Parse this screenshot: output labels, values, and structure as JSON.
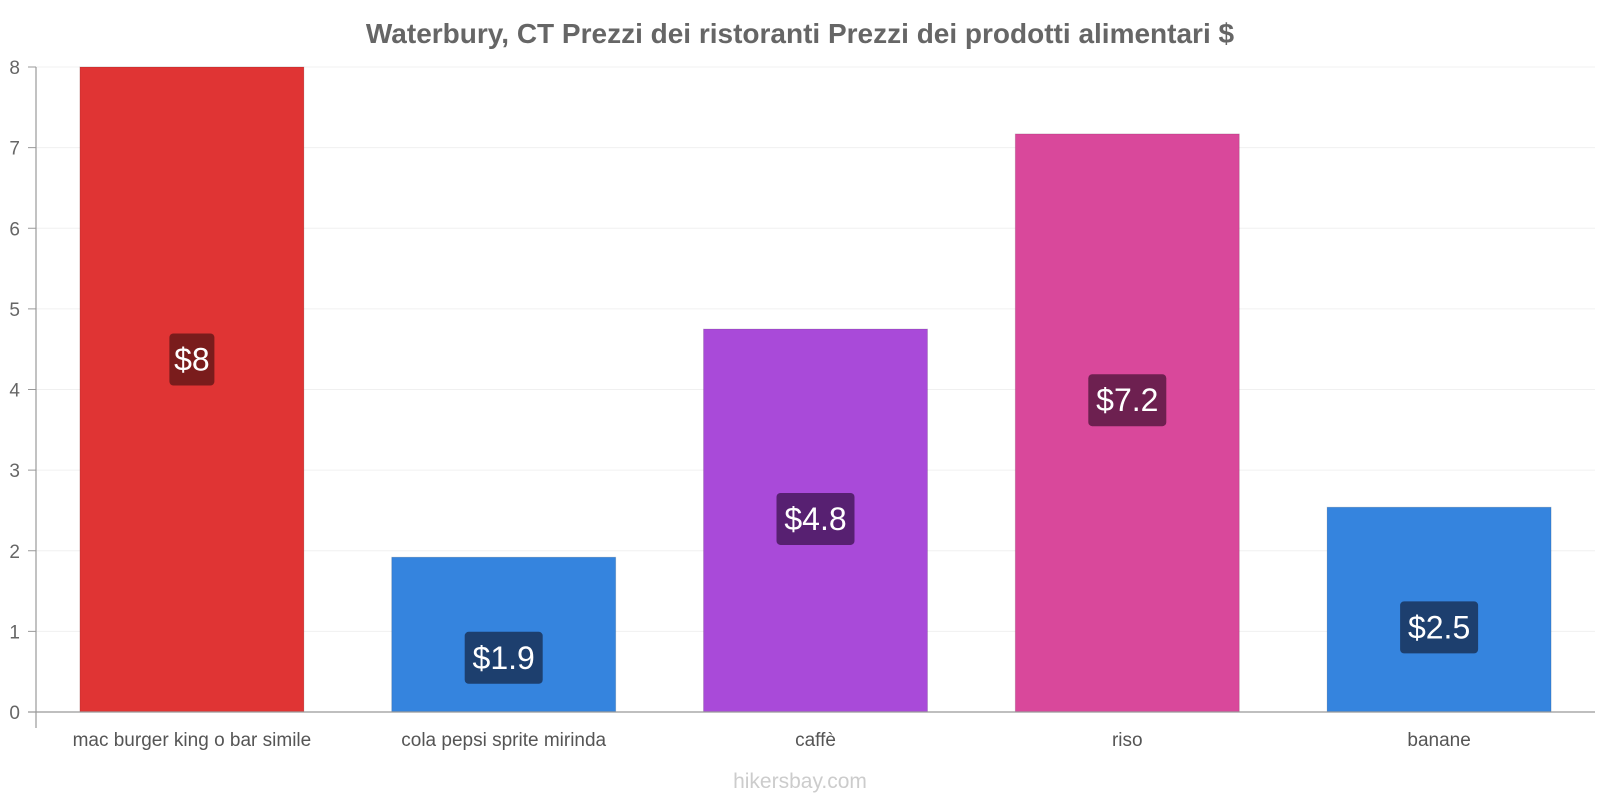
{
  "chart_data": {
    "type": "bar",
    "title": "Waterbury, CT Prezzi dei ristoranti Prezzi dei prodotti alimentari $",
    "categories": [
      "mac burger king o bar simile",
      "cola pepsi sprite mirinda",
      "caffè",
      "riso",
      "banane"
    ],
    "values": [
      8.0,
      1.92,
      4.75,
      7.17,
      2.54
    ],
    "value_labels": [
      "$8",
      "$1.9",
      "$4.8",
      "$7.2",
      "$2.5"
    ],
    "bar_colors": [
      "#e03434",
      "#3584de",
      "#a94ad9",
      "#d9489b",
      "#3584de"
    ],
    "label_bg_colors": [
      "#7a1c1c",
      "#1d3f6e",
      "#572071",
      "#6d2050",
      "#1d3f6e"
    ],
    "ylim": [
      0,
      8
    ],
    "yticks": [
      "0",
      "1",
      "2",
      "3",
      "4",
      "5",
      "6",
      "7",
      "8"
    ],
    "xlabel": "",
    "ylabel": "",
    "grid": true
  },
  "credit": "hikersbay.com"
}
